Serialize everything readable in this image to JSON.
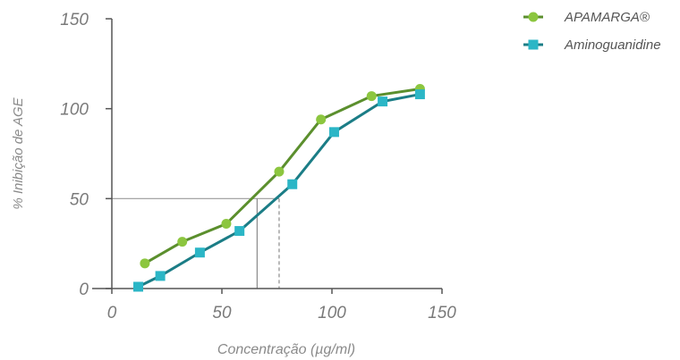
{
  "chart_data": {
    "type": "line",
    "xlabel": "Concentração (µg/ml)",
    "ylabel": "% Inibição de AGE",
    "x_ticks": [
      "0",
      "50",
      "100",
      "150"
    ],
    "y_ticks": [
      "0",
      "50",
      "100",
      "150"
    ],
    "xlim": [
      0,
      150
    ],
    "ylim": [
      0,
      150
    ],
    "legend_position": "top-right",
    "grid": false,
    "series": [
      {
        "name": "APAMARGA®",
        "color": "#5b8f2d",
        "marker": "circle",
        "marker_color": "#8cc63f",
        "x": [
          15,
          32,
          52,
          76,
          95,
          118,
          140
        ],
        "y": [
          14,
          26,
          36,
          65,
          94,
          107,
          111
        ]
      },
      {
        "name": "Aminoguanidine",
        "color": "#1b7d86",
        "marker": "square",
        "marker_color": "#2bb6c6",
        "x": [
          12,
          22,
          40,
          58,
          82,
          101,
          123,
          140
        ],
        "y": [
          1,
          7,
          20,
          32,
          58,
          87,
          104,
          108
        ]
      }
    ],
    "annotations": [
      {
        "type": "ic50-reference",
        "series": "APAMARGA®",
        "x": 66,
        "y": 50,
        "style": "solid"
      },
      {
        "type": "ic50-reference",
        "series": "Aminoguanidine",
        "x": 76,
        "y": 50,
        "style": "dashed"
      }
    ]
  }
}
